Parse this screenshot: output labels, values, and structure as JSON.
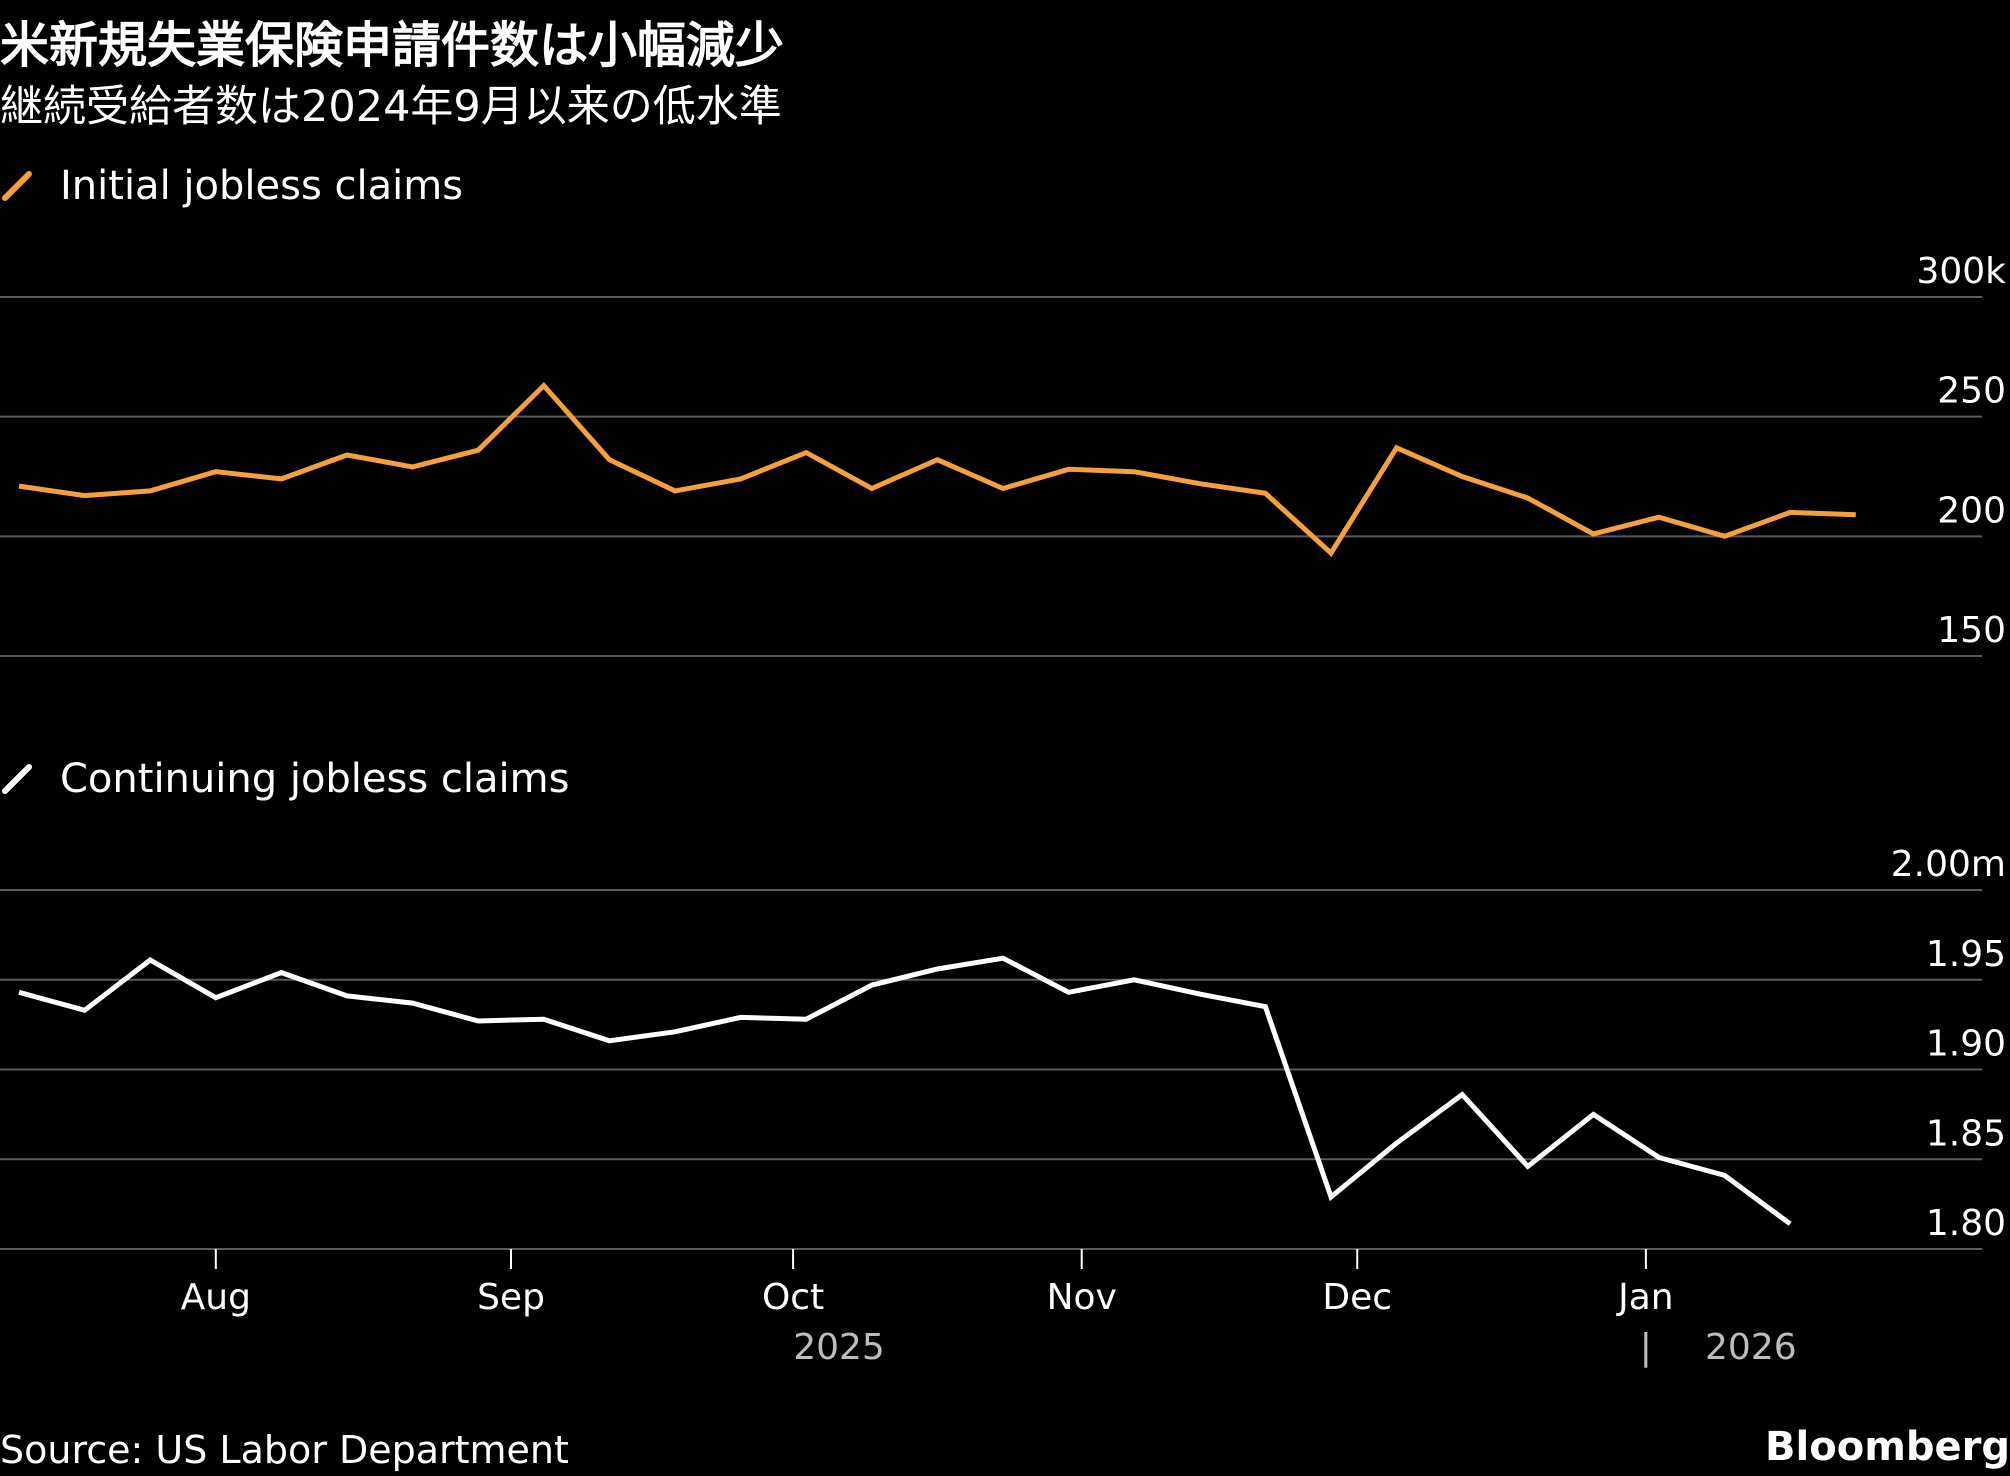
{
  "title": "米新規失業保険申請件数は小幅減少",
  "subtitle": "継続受給者数は2024年9月以来の低水準",
  "source": "Source: US Labor Department",
  "brand": "Bloomberg",
  "colors": {
    "background": "#000000",
    "initial": "#f5a03a",
    "continuing": "#ffffff",
    "grid": "#5a5a5a",
    "year_label": "#bdbdbd"
  },
  "chart_data": [
    {
      "type": "line",
      "legend": "Initial jobless claims",
      "unit": "k",
      "ylim": [
        150,
        300
      ],
      "yticks": [
        {
          "value": 300,
          "label": "300k"
        },
        {
          "value": 250,
          "label": "250"
        },
        {
          "value": 200,
          "label": "200"
        },
        {
          "value": 150,
          "label": "150"
        }
      ],
      "grid": true,
      "series": [
        {
          "color": "#f5a03a",
          "values": [
            221,
            217,
            219,
            227,
            224,
            234,
            229,
            236,
            263,
            232,
            219,
            224,
            235,
            220,
            232,
            220,
            228,
            227,
            222,
            218,
            193,
            237,
            225,
            216,
            201,
            208,
            200,
            210,
            209
          ]
        }
      ]
    },
    {
      "type": "line",
      "legend": "Continuing jobless claims",
      "unit": "m",
      "ylim": [
        1.8,
        2.0
      ],
      "yticks": [
        {
          "value": 2.0,
          "label": "2.00m"
        },
        {
          "value": 1.95,
          "label": "1.95"
        },
        {
          "value": 1.9,
          "label": "1.90"
        },
        {
          "value": 1.85,
          "label": "1.85"
        },
        {
          "value": 1.8,
          "label": "1.80"
        }
      ],
      "grid": true,
      "series": [
        {
          "color": "#ffffff",
          "values": [
            1.943,
            1.933,
            1.961,
            1.94,
            1.954,
            1.941,
            1.937,
            1.927,
            1.928,
            1.916,
            1.921,
            1.929,
            1.928,
            1.947,
            1.956,
            1.962,
            1.943,
            1.95,
            1.942,
            1.935,
            1.829,
            1.859,
            1.886,
            1.846,
            1.875,
            1.851,
            1.841,
            1.814
          ]
        }
      ]
    }
  ],
  "x_axis": {
    "month_ticks": [
      {
        "label": "Aug",
        "index": 3
      },
      {
        "label": "Sep",
        "index": 7.5
      },
      {
        "label": "Oct",
        "index": 11.8
      },
      {
        "label": "Nov",
        "index": 16.2
      },
      {
        "label": "Dec",
        "index": 20.4
      },
      {
        "label": "Jan",
        "index": 24.8
      }
    ],
    "years": [
      {
        "label": "2025",
        "index": 12.5
      },
      {
        "label": "2026",
        "index": 26.4
      }
    ],
    "year_divider": "|",
    "year_divider_index": 24.8
  }
}
